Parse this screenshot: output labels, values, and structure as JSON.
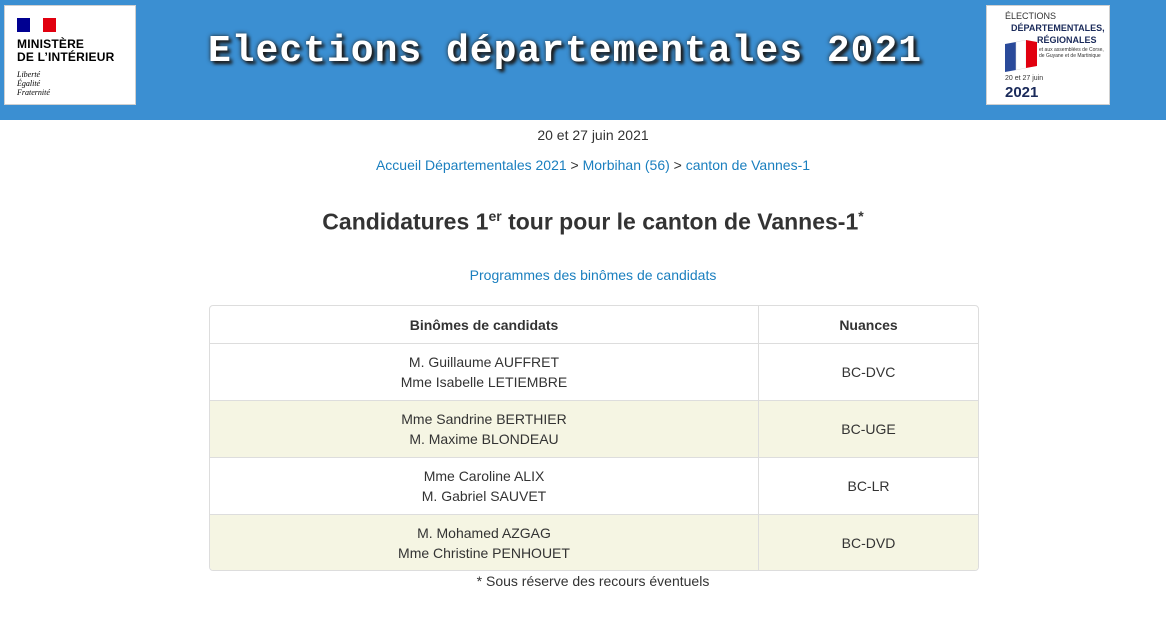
{
  "header": {
    "ministry": {
      "line1": "MINISTÈRE",
      "line2": "DE L’INTÉRIEUR",
      "motto1": "Liberté",
      "motto2": "Égalité",
      "motto3": "Fraternité"
    },
    "title": "Elections départementales 2021",
    "logo_right": {
      "top": "ÉLECTIONS",
      "bold1": "DÉPARTEMENTALES,",
      "bold2": "RÉGIONALES",
      "small": "et aux assemblées de Corse, de Guyane et de Martinique",
      "date": "20 et 27 juin",
      "year": "2021"
    }
  },
  "date_line": "20 et 27 juin 2021",
  "breadcrumb": {
    "item1": "Accueil Départementales 2021",
    "sep": ">",
    "item2": "Morbihan (56)",
    "item3": "canton de Vannes-1"
  },
  "page_title": {
    "pre": "Candidatures 1",
    "sup": "er",
    "post": " tour pour le canton de Vannes-1",
    "star": "*"
  },
  "programmes_link": "Programmes des binômes de candidats",
  "table": {
    "headers": {
      "col1": "Binômes de candidats",
      "col2": "Nuances"
    },
    "rows": [
      {
        "c1": "M. Guillaume AUFFRET",
        "c2": "Mme Isabelle LETIEMBRE",
        "nuance": "BC-DVC"
      },
      {
        "c1": "Mme Sandrine BERTHIER",
        "c2": "M. Maxime BLONDEAU",
        "nuance": "BC-UGE"
      },
      {
        "c1": "Mme Caroline ALIX",
        "c2": "M. Gabriel SAUVET",
        "nuance": "BC-LR"
      },
      {
        "c1": "M. Mohamed AZGAG",
        "c2": "Mme Christine PENHOUET",
        "nuance": "BC-DVD"
      }
    ]
  },
  "footnote": "* Sous réserve des recours éventuels",
  "colors": {
    "banner": "#3b8fd2",
    "link": "#1a7fbf",
    "alt_row": "#f5f5e3"
  }
}
